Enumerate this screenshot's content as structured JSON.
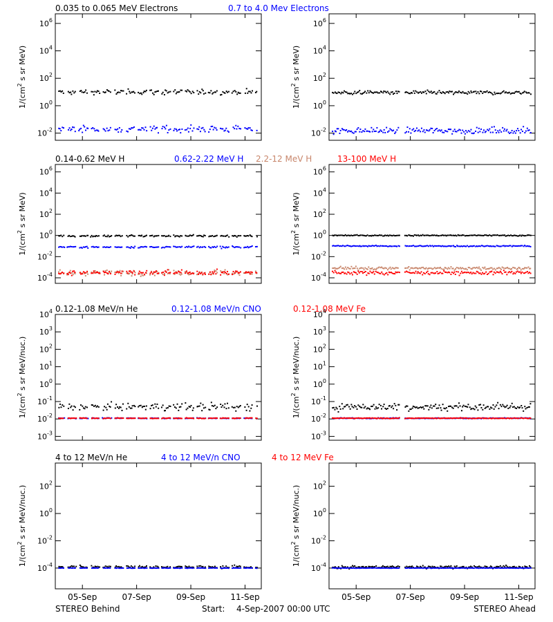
{
  "rows": [
    {
      "legend": [
        {
          "text": "0.035 to 0.065 MeV Electrons",
          "color": "#000000"
        },
        {
          "text": "0.7 to 4.0 Mev Electrons",
          "color": "#0000ff"
        }
      ],
      "ylabel_parts": [
        "1/(cm",
        "2",
        " s sr MeV)"
      ],
      "ticks": [
        {
          "base": "10",
          "exp": "6"
        },
        {
          "base": "10",
          "exp": "4"
        },
        {
          "base": "10",
          "exp": "2"
        },
        {
          "base": "10",
          "exp": "0"
        },
        {
          "base": "10",
          "exp": "-2"
        }
      ]
    },
    {
      "legend": [
        {
          "text": "0.14-0.62 MeV H",
          "color": "#000000"
        },
        {
          "text": "0.62-2.22 MeV H",
          "color": "#0000ff"
        },
        {
          "text": "2.2-12 MeV H",
          "color": "#c8866b"
        },
        {
          "text": "13-100 MeV H",
          "color": "#ff0000"
        }
      ],
      "ylabel_parts": [
        "1/(cm",
        "2",
        " s sr MeV)"
      ],
      "ticks": [
        {
          "base": "10",
          "exp": "6"
        },
        {
          "base": "10",
          "exp": "4"
        },
        {
          "base": "10",
          "exp": "2"
        },
        {
          "base": "10",
          "exp": "0"
        },
        {
          "base": "10",
          "exp": "-2"
        },
        {
          "base": "10",
          "exp": "-4"
        }
      ]
    },
    {
      "legend": [
        {
          "text": "0.12-1.08 MeV/n He",
          "color": "#000000"
        },
        {
          "text": "0.12-1.08 MeV/n CNO",
          "color": "#0000ff"
        },
        {
          "text": "0.12-1.08 MeV Fe",
          "color": "#ff0000"
        }
      ],
      "ylabel_parts": [
        "1/(cm",
        "2",
        " s sr MeV/nuc.)"
      ],
      "ticks": [
        {
          "base": "10",
          "exp": "4"
        },
        {
          "base": "10",
          "exp": "3"
        },
        {
          "base": "10",
          "exp": "2"
        },
        {
          "base": "10",
          "exp": "1"
        },
        {
          "base": "10",
          "exp": "0"
        },
        {
          "base": "10",
          "exp": "-1"
        },
        {
          "base": "10",
          "exp": "-2"
        },
        {
          "base": "10",
          "exp": "-3"
        }
      ]
    },
    {
      "legend": [
        {
          "text": "4 to 12 MeV/n He",
          "color": "#000000"
        },
        {
          "text": "4 to 12 MeV/n CNO",
          "color": "#0000ff"
        },
        {
          "text": "4 to 12 MeV Fe",
          "color": "#ff0000"
        }
      ],
      "ylabel_parts": [
        "1/(cm",
        "2",
        " s sr MeV/nuc.)"
      ],
      "ticks": [
        {
          "base": "10",
          "exp": "2"
        },
        {
          "base": "10",
          "exp": "0"
        },
        {
          "base": "10",
          "exp": "-2"
        },
        {
          "base": "10",
          "exp": "-4"
        }
      ]
    }
  ],
  "x_tick_labels": [
    "05-Sep",
    "07-Sep",
    "09-Sep",
    "11-Sep"
  ],
  "footer": {
    "left": "STEREO Behind",
    "start_label": "Start:",
    "start_value": "4-Sep-2007 00:00 UTC",
    "right": "STEREO Ahead"
  },
  "chart_data": [
    {
      "type": "scatter",
      "panel": "row1-left",
      "yscale": "log",
      "xlim_days": [
        0,
        7.6
      ],
      "ylim": [
        0.003,
        5000000
      ],
      "series": [
        {
          "name": "0.035 to 0.065 MeV Electrons",
          "color": "#000000",
          "level": 10,
          "spread": 0.25,
          "gap_day": null
        },
        {
          "name": "0.7 to 4.0 Mev Electrons",
          "color": "#0000ff",
          "level": 0.02,
          "spread": 0.35,
          "gap_day": null
        }
      ]
    },
    {
      "type": "scatter",
      "panel": "row1-right",
      "yscale": "log",
      "xlim_days": [
        0,
        7.6
      ],
      "ylim": [
        0.003,
        5000000
      ],
      "series": [
        {
          "name": "0.035 to 0.065 MeV Electrons",
          "color": "#000000",
          "level": 9,
          "spread": 0.2,
          "gap_day": 2.6
        },
        {
          "name": "0.7 to 4.0 Mev Electrons",
          "color": "#0000ff",
          "level": 0.015,
          "spread": 0.3,
          "gap_day": 2.6
        }
      ]
    },
    {
      "type": "scatter",
      "panel": "row2-left",
      "yscale": "log",
      "xlim_days": [
        0,
        7.6
      ],
      "ylim": [
        3e-05,
        5000000
      ],
      "series": [
        {
          "name": "0.14-0.62 MeV H",
          "color": "#000000",
          "level": 0.9,
          "spread": 0.12,
          "gap_day": null
        },
        {
          "name": "0.62-2.22 MeV H",
          "color": "#0000ff",
          "level": 0.08,
          "spread": 0.12,
          "gap_day": null
        },
        {
          "name": "2.2-12 MeV H",
          "color": "#c8866b",
          "level": 0.0003,
          "spread": 0.35,
          "gap_day": null
        },
        {
          "name": "13-100 MeV H",
          "color": "#ff0000",
          "level": 0.0003,
          "spread": 0.3,
          "gap_day": null
        }
      ]
    },
    {
      "type": "scatter",
      "panel": "row2-right",
      "yscale": "log",
      "xlim_days": [
        0,
        7.6
      ],
      "ylim": [
        3e-05,
        5000000
      ],
      "series": [
        {
          "name": "0.14-0.62 MeV H",
          "color": "#000000",
          "level": 1.0,
          "spread": 0.08,
          "gap_day": 2.6
        },
        {
          "name": "0.62-2.22 MeV H",
          "color": "#0000ff",
          "level": 0.1,
          "spread": 0.08,
          "gap_day": 2.6
        },
        {
          "name": "2.2-12 MeV H",
          "color": "#c8866b",
          "level": 0.0008,
          "spread": 0.2,
          "gap_day": 2.6
        },
        {
          "name": "13-100 MeV H",
          "color": "#ff0000",
          "level": 0.0003,
          "spread": 0.25,
          "gap_day": 2.6
        }
      ]
    },
    {
      "type": "scatter",
      "panel": "row3-left",
      "yscale": "log",
      "xlim_days": [
        0,
        7.6
      ],
      "ylim": [
        0.0006,
        10000
      ],
      "series": [
        {
          "name": "0.12-1.08 MeV/n He",
          "color": "#000000",
          "level": 0.05,
          "spread": 0.3,
          "gap_day": null
        },
        {
          "name": "0.12-1.08 MeV/n CNO",
          "color": "#0000ff",
          "level": 0.011,
          "spread": 0.03,
          "gap_day": null
        },
        {
          "name": "0.12-1.08 MeV Fe",
          "color": "#ff0000",
          "level": 0.011,
          "spread": 0.03,
          "gap_day": null
        }
      ]
    },
    {
      "type": "scatter",
      "panel": "row3-right",
      "yscale": "log",
      "xlim_days": [
        0,
        7.6
      ],
      "ylim": [
        0.0006,
        10000
      ],
      "series": [
        {
          "name": "0.12-1.08 MeV/n He",
          "color": "#000000",
          "level": 0.05,
          "spread": 0.3,
          "gap_day": 2.6
        },
        {
          "name": "0.12-1.08 MeV/n CNO",
          "color": "#0000ff",
          "level": 0.011,
          "spread": 0.03,
          "gap_day": 2.6
        },
        {
          "name": "0.12-1.08 MeV Fe",
          "color": "#ff0000",
          "level": 0.011,
          "spread": 0.03,
          "gap_day": 2.6
        }
      ]
    },
    {
      "type": "scatter",
      "panel": "row4-left",
      "yscale": "log",
      "xlim_days": [
        0,
        7.6
      ],
      "ylim": [
        3e-06,
        5000
      ],
      "series": [
        {
          "name": "4 to 12 MeV/n He",
          "color": "#000000",
          "level": 0.00012,
          "spread": 0.15,
          "gap_day": null
        },
        {
          "name": "4 to 12 MeV/n CNO",
          "color": "#0000ff",
          "level": 0.0001,
          "spread": 0.02,
          "gap_day": null
        }
      ]
    },
    {
      "type": "scatter",
      "panel": "row4-right",
      "yscale": "log",
      "xlim_days": [
        0,
        7.6
      ],
      "ylim": [
        3e-06,
        5000
      ],
      "series": [
        {
          "name": "4 to 12 MeV/n He",
          "color": "#000000",
          "level": 0.00012,
          "spread": 0.15,
          "gap_day": 2.6
        },
        {
          "name": "4 to 12 MeV/n CNO",
          "color": "#0000ff",
          "level": 0.0001,
          "spread": 0.02,
          "gap_day": 2.6
        }
      ]
    }
  ]
}
